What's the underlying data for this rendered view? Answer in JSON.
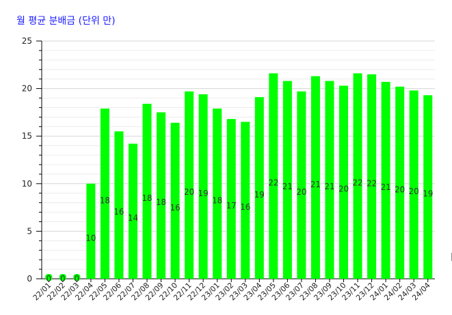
{
  "chart_data": {
    "type": "bar",
    "title": "월 평균 분배금 (단위 만)",
    "categories": [
      "22/01",
      "22/02",
      "22/03",
      "22/04",
      "22/05",
      "22/06",
      "22/07",
      "22/08",
      "22/09",
      "22/10",
      "22/11",
      "22/12",
      "23/01",
      "23/02",
      "23/03",
      "23/04",
      "23/05",
      "23/06",
      "23/07",
      "23/08",
      "23/09",
      "23/10",
      "23/11",
      "23/12",
      "24/01",
      "24/02",
      "24/03",
      "24/04"
    ],
    "values": [
      0,
      0,
      0,
      10,
      17.9,
      15.5,
      14.2,
      18.4,
      17.5,
      16.4,
      19.7,
      19.4,
      17.9,
      16.8,
      16.5,
      19.1,
      21.6,
      20.8,
      19.7,
      21.3,
      20.8,
      20.3,
      21.6,
      21.5,
      20.7,
      20.2,
      19.8,
      19.3
    ],
    "data_labels": [
      "0",
      "0",
      "0",
      "10",
      "18",
      "16",
      "14",
      "18",
      "18",
      "16",
      "20",
      "19",
      "18",
      "17",
      "16",
      "19",
      "22",
      "21",
      "20",
      "21",
      "21",
      "20",
      "22",
      "22",
      "21",
      "20",
      "20",
      "19"
    ],
    "yticks": [
      "0",
      "5",
      "10",
      "15",
      "20",
      "25"
    ],
    "ylim": [
      0,
      25
    ],
    "bar_color": "#00ff00",
    "grid": true,
    "xlabel": "",
    "ylabel": ""
  }
}
